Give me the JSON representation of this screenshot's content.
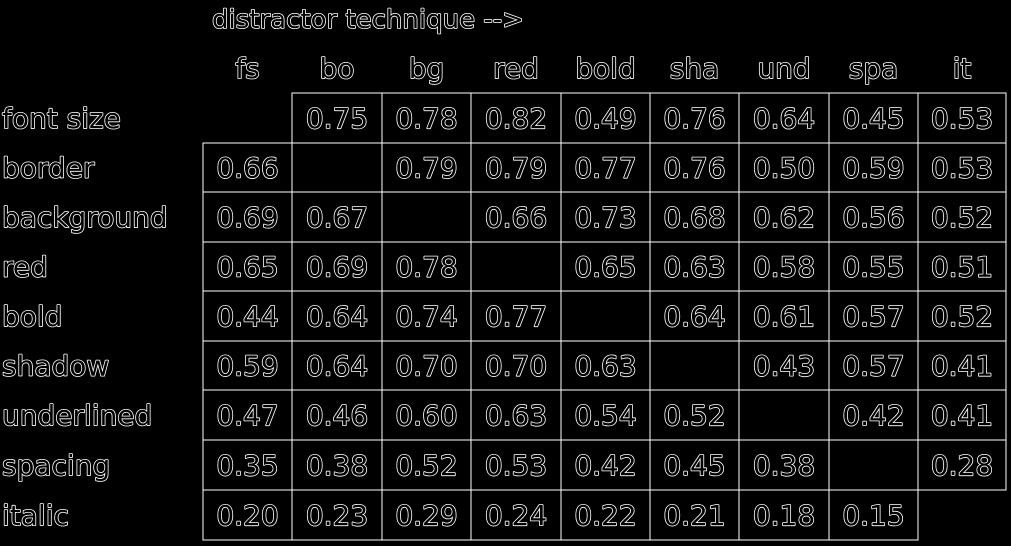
{
  "chart_data": {
    "type": "table",
    "title": "distractor technique -->",
    "columns": [
      "fs",
      "bo",
      "bg",
      "red",
      "bold",
      "sha",
      "und",
      "spa",
      "it"
    ],
    "rows": [
      {
        "label": "font size",
        "values": [
          null,
          "0.75",
          "0.78",
          "0.82",
          "0.49",
          "0.76",
          "0.64",
          "0.45",
          "0.53"
        ]
      },
      {
        "label": "border",
        "values": [
          "0.66",
          null,
          "0.79",
          "0.79",
          "0.77",
          "0.76",
          "0.50",
          "0.59",
          "0.53"
        ]
      },
      {
        "label": "background",
        "values": [
          "0.69",
          "0.67",
          null,
          "0.66",
          "0.73",
          "0.68",
          "0.62",
          "0.56",
          "0.52"
        ]
      },
      {
        "label": "red",
        "values": [
          "0.65",
          "0.69",
          "0.78",
          null,
          "0.65",
          "0.63",
          "0.58",
          "0.55",
          "0.51"
        ]
      },
      {
        "label": "bold",
        "values": [
          "0.44",
          "0.64",
          "0.74",
          "0.77",
          null,
          "0.64",
          "0.61",
          "0.57",
          "0.52"
        ]
      },
      {
        "label": "shadow",
        "values": [
          "0.59",
          "0.64",
          "0.70",
          "0.70",
          "0.63",
          null,
          "0.43",
          "0.57",
          "0.41"
        ]
      },
      {
        "label": "underlined",
        "values": [
          "0.47",
          "0.46",
          "0.60",
          "0.63",
          "0.54",
          "0.52",
          null,
          "0.42",
          "0.41"
        ]
      },
      {
        "label": "spacing",
        "values": [
          "0.35",
          "0.38",
          "0.52",
          "0.53",
          "0.42",
          "0.45",
          "0.38",
          null,
          "0.28"
        ]
      },
      {
        "label": "italic",
        "values": [
          "0.20",
          "0.23",
          "0.29",
          "0.24",
          "0.22",
          "0.21",
          "0.18",
          "0.15",
          null
        ]
      }
    ],
    "colors": {
      "background": "#000000",
      "text_fill": "#000000",
      "text_outline": "#ffffff",
      "lines": "#ffffff"
    }
  }
}
